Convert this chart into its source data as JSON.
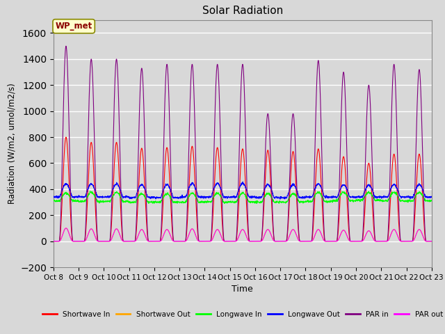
{
  "title": "Solar Radiation",
  "xlabel": "Time",
  "ylabel": "Radiation (W/m2, umol/m2/s)",
  "ylim": [
    -200,
    1700
  ],
  "xlim": [
    0,
    360
  ],
  "x_tick_labels": [
    "Oct 8",
    "Oct 9",
    "Oct 10",
    "Oct 11",
    "Oct 12",
    "Oct 13",
    "Oct 14",
    "Oct 15",
    "Oct 16",
    "Oct 17",
    "Oct 18",
    "Oct 19",
    "Oct 20",
    "Oct 21",
    "Oct 22",
    "Oct 23"
  ],
  "x_tick_positions": [
    0,
    24,
    48,
    72,
    96,
    120,
    144,
    168,
    192,
    216,
    240,
    264,
    288,
    312,
    336,
    360
  ],
  "yticks": [
    -200,
    0,
    200,
    400,
    600,
    800,
    1000,
    1200,
    1400,
    1600
  ],
  "background_color": "#d8d8d8",
  "plot_bg_color": "#d8d8d8",
  "grid_color": "#ffffff",
  "annotation_text": "WP_met",
  "annotation_bg": "#ffffcc",
  "annotation_border": "#888800",
  "legend_items": [
    {
      "label": "Shortwave In",
      "color": "red"
    },
    {
      "label": "Shortwave Out",
      "color": "orange"
    },
    {
      "label": "Longwave In",
      "color": "green"
    },
    {
      "label": "Longwave Out",
      "color": "blue"
    },
    {
      "label": "PAR in",
      "color": "purple"
    },
    {
      "label": "PAR out",
      "color": "magenta"
    }
  ],
  "n_days": 15,
  "shortwave_in_peaks": [
    800,
    760,
    760,
    715,
    720,
    730,
    720,
    710,
    700,
    690,
    710,
    650,
    600,
    670,
    670
  ],
  "shortwave_out_peaks": [
    100,
    95,
    95,
    90,
    90,
    95,
    90,
    90,
    90,
    90,
    90,
    85,
    80,
    90,
    90
  ],
  "longwave_in_base": [
    310,
    305,
    305,
    300,
    300,
    300,
    300,
    300,
    300,
    300,
    305,
    310,
    315,
    310,
    310
  ],
  "longwave_in_day_add": [
    60,
    70,
    70,
    65,
    65,
    70,
    70,
    70,
    65,
    65,
    70,
    65,
    60,
    65,
    65
  ],
  "longwave_out_base": [
    340,
    340,
    340,
    335,
    335,
    340,
    340,
    340,
    335,
    335,
    340,
    340,
    340,
    340,
    340
  ],
  "longwave_out_day_add": [
    100,
    100,
    100,
    100,
    100,
    105,
    105,
    105,
    100,
    100,
    100,
    95,
    90,
    95,
    95
  ],
  "par_in_peaks": [
    1500,
    1400,
    1400,
    1330,
    1360,
    1360,
    1360,
    1360,
    980,
    980,
    1390,
    1300,
    1200,
    1360,
    1320
  ],
  "par_out_peaks": [
    100,
    95,
    95,
    90,
    90,
    95,
    90,
    90,
    90,
    90,
    90,
    85,
    80,
    90,
    90
  ]
}
